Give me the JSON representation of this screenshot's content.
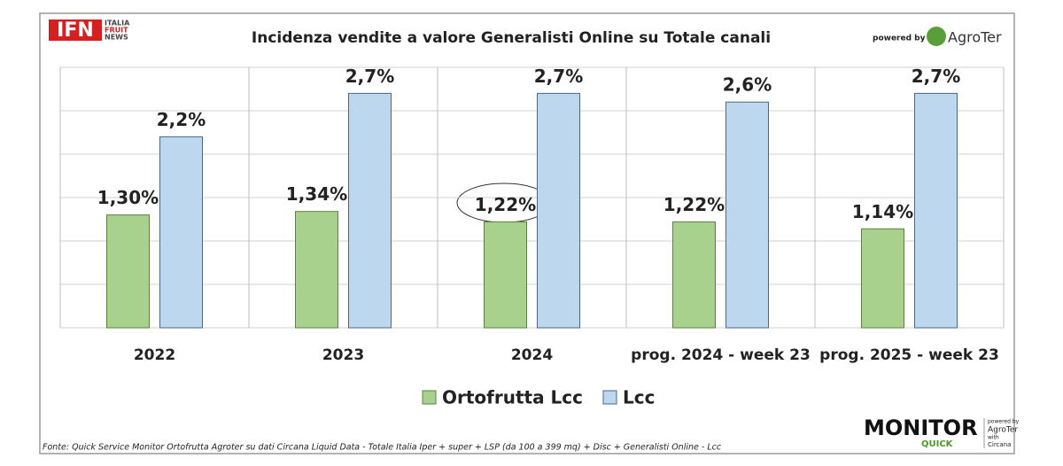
{
  "chart_data": {
    "type": "bar",
    "title": "Incidenza vendite a valore Generalisti Online su Totale canali",
    "categories": [
      "2022",
      "2023",
      "2024",
      "prog. 2024 - week 23",
      "prog. 2025 - week 23"
    ],
    "series": [
      {
        "name": "Ortofrutta Lcc",
        "color": "#a9d18e",
        "values": [
          1.3,
          1.34,
          1.22,
          1.22,
          1.14
        ],
        "value_labels": [
          "1,30%",
          "1,34%",
          "1,22%",
          "1,22%",
          "1,14%"
        ]
      },
      {
        "name": "Lcc",
        "color": "#bdd7ee",
        "values": [
          2.2,
          2.7,
          2.7,
          2.6,
          2.7
        ],
        "value_labels": [
          "2,2%",
          "2,7%",
          "2,7%",
          "2,6%",
          "2,7%"
        ]
      }
    ],
    "ylim": [
      0,
      3
    ],
    "yticks": [
      0,
      0.5,
      1,
      1.5,
      2,
      2.5,
      3
    ],
    "grid": true,
    "legend": "bottom",
    "source": "Fonte: Quick Service Monitor Ortofrutta Agroter su dati Circana Liquid Data - Totale Italia Iper + super + LSP (da 100 a 399 mq) + Disc + Generalisti Online - Lcc"
  },
  "branding": {
    "ifn": "IFN",
    "ifn_lines": [
      "ITALIA",
      "FRUIT",
      "NEWS"
    ],
    "powered_by": "powered by",
    "agroter": "AgroTer",
    "monitor": "MONITOR",
    "quick": "QUICK",
    "monitor_powered": "powered by",
    "monitor_agroter": "AgroTer",
    "monitor_with": "with",
    "monitor_circana": "Circana"
  }
}
